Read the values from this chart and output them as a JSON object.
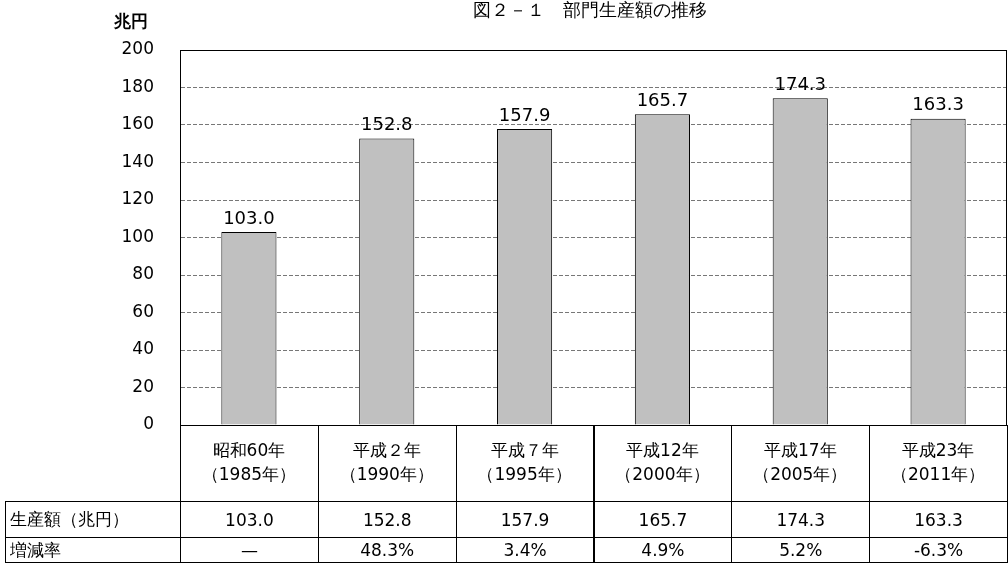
{
  "chart_data": {
    "type": "bar",
    "title": "図２－１　部門生産額の推移",
    "ylabel": "兆円",
    "categories": [
      "昭和60年（1985年）",
      "平成２年（1990年）",
      "平成７年（1995年）",
      "平成12年（2000年）",
      "平成17年（2005年）",
      "平成23年（2011年）"
    ],
    "values": [
      103.0,
      152.8,
      157.9,
      165.7,
      174.3,
      163.3
    ],
    "value_labels": [
      "103.0",
      "152.8",
      "157.9",
      "165.7",
      "174.3",
      "163.3"
    ],
    "color": "#c0c0c0",
    "ylim": [
      0,
      200
    ],
    "yticks": [
      0,
      20,
      40,
      60,
      80,
      100,
      120,
      140,
      160,
      180,
      200
    ],
    "grid": "y",
    "legend": false,
    "data_labels": true,
    "annotations": [
      "生産額（兆円）",
      "増減率",
      "—",
      "48.3%",
      "3.4%",
      "4.9%",
      "5.2%",
      "-6.3%"
    ]
  }
}
